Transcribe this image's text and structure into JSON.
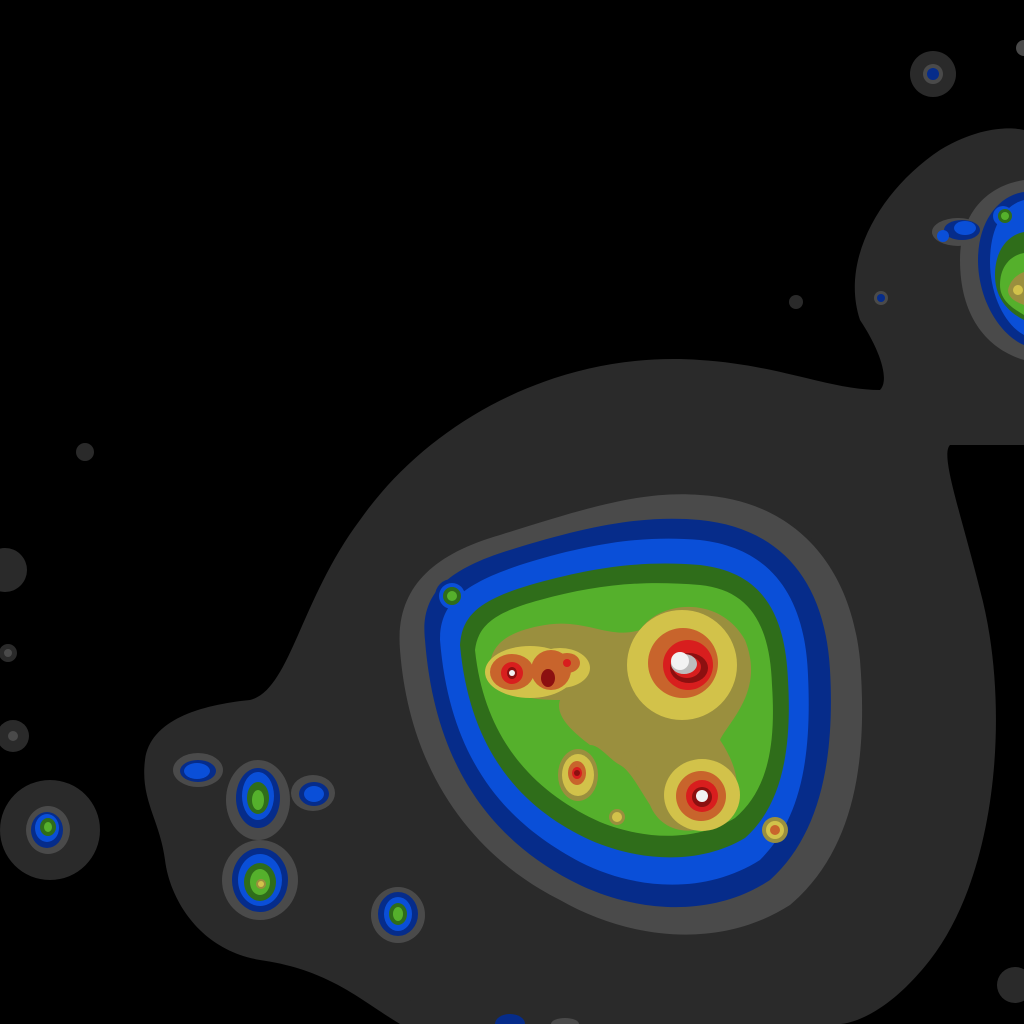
{
  "image": {
    "subject": "contour-map",
    "palette": {
      "background": "#000000",
      "halo": "#2a2a2a",
      "rim": "#4a4a4a",
      "deep_blue": "#062c8a",
      "blue": "#0a4fd8",
      "dark_green": "#2f6d1a",
      "green": "#55b02c",
      "olive": "#9a8f3e",
      "yellow": "#d2c24a",
      "orange": "#c8642c",
      "red": "#d81e1e",
      "dark_red": "#8c1010",
      "peak": "#f2f2f2",
      "peak_shadow": "#bdbdbd"
    }
  }
}
